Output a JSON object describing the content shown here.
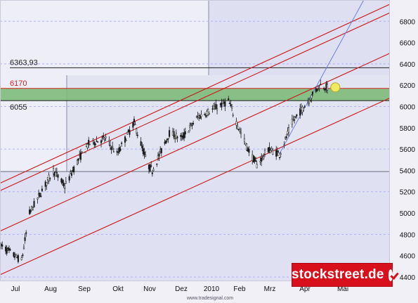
{
  "chart_data": {
    "type": "candlestick",
    "instrument": "",
    "x_labels": [
      "Jul",
      "Aug",
      "Sep",
      "Okt",
      "Nov",
      "Dez",
      "2010",
      "Feb",
      "Mrz",
      "Apr",
      "Mai"
    ],
    "y_ticks": [
      4400,
      4600,
      4800,
      5000,
      5200,
      5400,
      5600,
      5800,
      6000,
      6200,
      6400,
      6600,
      6800
    ],
    "ylim": [
      4360,
      7000
    ],
    "x_range": [
      "2009-06-24",
      "2010-06-02"
    ],
    "grid": true,
    "price_path": [
      [
        "2009-06-24",
        4700
      ],
      [
        "2009-07-13",
        4550
      ],
      [
        "2009-07-20",
        5000
      ],
      [
        "2009-08-10",
        5400
      ],
      [
        "2009-08-20",
        5250
      ],
      [
        "2009-09-01",
        5500
      ],
      [
        "2009-09-10",
        5650
      ],
      [
        "2009-09-25",
        5700
      ],
      [
        "2009-10-05",
        5550
      ],
      [
        "2009-10-20",
        5850
      ],
      [
        "2009-11-01",
        5450
      ],
      [
        "2009-11-05",
        5400
      ],
      [
        "2009-11-20",
        5750
      ],
      [
        "2009-12-01",
        5700
      ],
      [
        "2009-12-15",
        5900
      ],
      [
        "2010-01-11",
        6050
      ],
      [
        "2010-01-20",
        5800
      ],
      [
        "2010-01-28",
        5600
      ],
      [
        "2010-02-05",
        5450
      ],
      [
        "2010-02-15",
        5600
      ],
      [
        "2010-02-25",
        5550
      ],
      [
        "2010-03-08",
        5850
      ],
      [
        "2010-03-22",
        6050
      ],
      [
        "2010-04-01",
        6200
      ],
      [
        "2010-04-08",
        6180
      ]
    ],
    "horizontal_levels": [
      {
        "label": "6363,93",
        "value": 6363.93,
        "color": "#222222"
      },
      {
        "label": "6170",
        "value": 6170,
        "color": "#d42020"
      },
      {
        "label": "6055",
        "value": 6055,
        "color": "#1a1a1a"
      }
    ],
    "support_zone": {
      "from": 6055,
      "to": 6170,
      "color": "#77b874"
    },
    "trend_channels": [
      {
        "color": "#cc1818",
        "points": [
          [
            "2009-06-24",
            5280
          ],
          [
            "2010-06-02",
            6960
          ]
        ]
      },
      {
        "color": "#cc1818",
        "points": [
          [
            "2009-06-24",
            5210
          ],
          [
            "2010-06-02",
            6880
          ]
        ]
      },
      {
        "color": "#cc1818",
        "points": [
          [
            "2009-06-24",
            4830
          ],
          [
            "2010-06-02",
            6500
          ]
        ]
      },
      {
        "color": "#cc1818",
        "points": [
          [
            "2009-06-24",
            4420
          ],
          [
            "2010-06-02",
            6080
          ]
        ]
      }
    ],
    "steep_trendline": {
      "color": "#6a7ee0",
      "points": [
        [
          "2010-02-25",
          5560
        ],
        [
          "2010-05-10",
          7000
        ]
      ]
    },
    "marker": {
      "date": "2010-04-15",
      "value": 6180,
      "color": "#f0ea60"
    },
    "colors": {
      "background": "#eeeef8",
      "shade": "#d4d6ec",
      "candles": "#1a1a1a",
      "grid": "#b0b0ff",
      "axis_text": "#111111"
    }
  },
  "branding": {
    "logo_text": "stockstreet.de",
    "credit": "www.tradesignal.com"
  }
}
